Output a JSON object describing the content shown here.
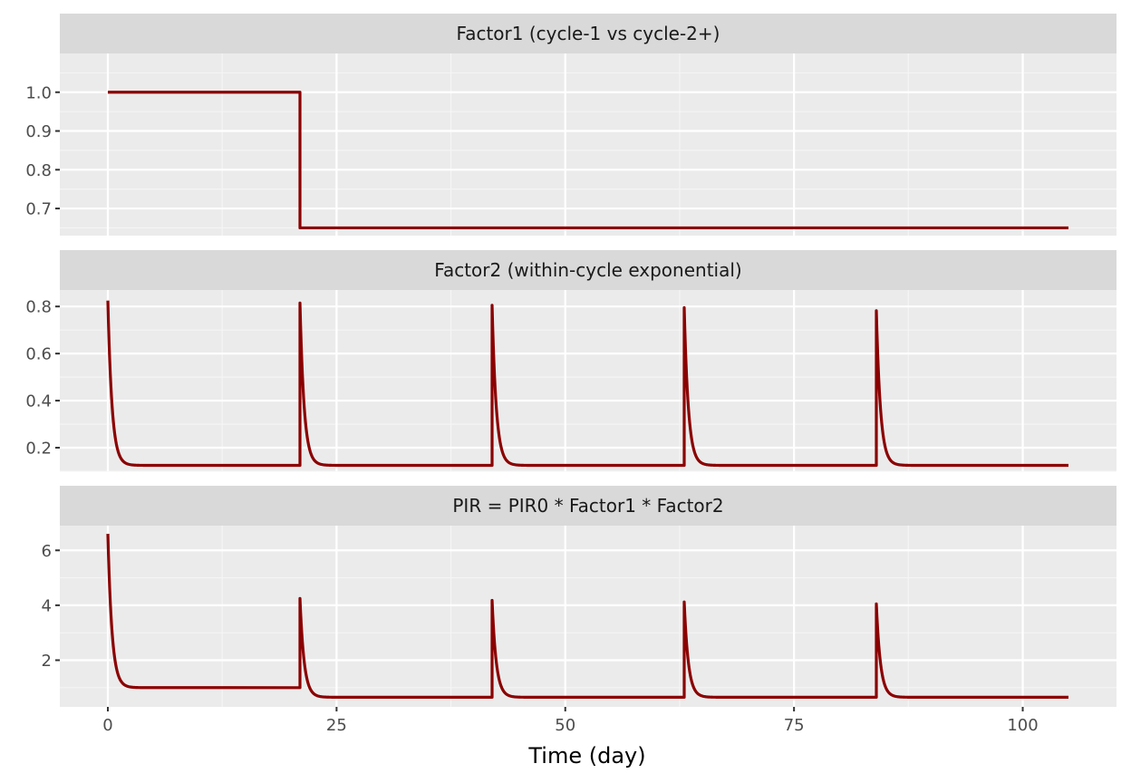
{
  "colors": {
    "panel_bg": "#EBEBEB",
    "strip_bg": "#D9D9D9",
    "grid_major": "#FFFFFF",
    "grid_minor": "#F5F5F5",
    "line": "#8B0000",
    "tick": "#333333"
  },
  "chart_data": {
    "type": "line",
    "layout": "facet-stacked-vertical",
    "xlabel": "Time (day)",
    "x_ticks": [
      0,
      25,
      50,
      75,
      100
    ],
    "x_tick_labels": [
      "0",
      "25",
      "50",
      "75",
      "100"
    ],
    "xlim": [
      -5.25,
      110.25
    ],
    "grid": true,
    "panels": [
      {
        "title": "Factor1 (cycle-1 vs cycle-2+)",
        "ylim": [
          0.63,
          1.1
        ],
        "y_ticks": [
          0.7,
          0.8,
          0.9,
          1.0
        ],
        "y_tick_labels": [
          "0.7",
          "0.8",
          "0.9",
          "1.0"
        ],
        "series": [
          {
            "kind": "step",
            "x": [
              0,
              21,
              21,
              105
            ],
            "y": [
              1.0,
              1.0,
              0.65,
              0.65
            ]
          }
        ]
      },
      {
        "title": "Factor2 (within-cycle exponential)",
        "ylim": [
          0.1,
          0.87
        ],
        "y_ticks": [
          0.2,
          0.4,
          0.6,
          0.8
        ],
        "y_tick_labels": [
          "0.2",
          "0.4",
          "0.6",
          "0.8"
        ],
        "series": [
          {
            "kind": "spikes",
            "baseline": 0.125,
            "spikes": [
              {
                "t": 0,
                "peak": 0.825
              },
              {
                "t": 21,
                "peak": 0.815
              },
              {
                "t": 42,
                "peak": 0.805
              },
              {
                "t": 63,
                "peak": 0.795
              },
              {
                "t": 84,
                "peak": 0.782
              }
            ],
            "x_end": 105
          }
        ]
      },
      {
        "title": "PIR = PIR0 * Factor1 * Factor2",
        "ylim": [
          0.3,
          6.9
        ],
        "y_ticks": [
          2,
          4,
          6
        ],
        "y_tick_labels": [
          "2",
          "4",
          "6"
        ],
        "series": [
          {
            "kind": "spikes",
            "spikes": [
              {
                "t": 0,
                "peak": 6.6,
                "baseline": 1.0
              },
              {
                "t": 21,
                "peak": 4.25,
                "baseline": 0.65
              },
              {
                "t": 42,
                "peak": 4.18,
                "baseline": 0.65
              },
              {
                "t": 63,
                "peak": 4.12,
                "baseline": 0.65
              },
              {
                "t": 84,
                "peak": 4.05,
                "baseline": 0.65
              }
            ],
            "x_end": 105
          }
        ]
      }
    ]
  }
}
